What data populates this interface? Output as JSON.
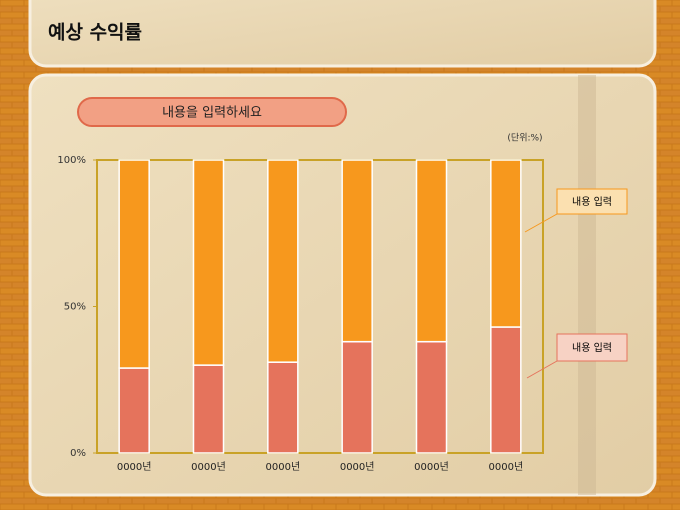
{
  "title": "예상 수익률",
  "chart_data": {
    "type": "stacked_bar",
    "title": "내용을 입력하세요",
    "unit_note": "(단위:%)",
    "categories": [
      "0000년",
      "0000년",
      "0000년",
      "0000년",
      "0000년",
      "0000년"
    ],
    "series": [
      {
        "name": "내용 입력",
        "color": "#e5735c",
        "values": [
          29,
          30,
          31,
          38,
          38,
          43
        ]
      },
      {
        "name": "내용 입력",
        "color": "#f7981d",
        "values": [
          71,
          70,
          69,
          62,
          62,
          57
        ]
      }
    ],
    "ylim": [
      0,
      100
    ],
    "yticks": [
      {
        "value": 0,
        "label": "0%"
      },
      {
        "value": 50,
        "label": "50%"
      },
      {
        "value": 100,
        "label": "100%"
      }
    ],
    "grid": false
  }
}
